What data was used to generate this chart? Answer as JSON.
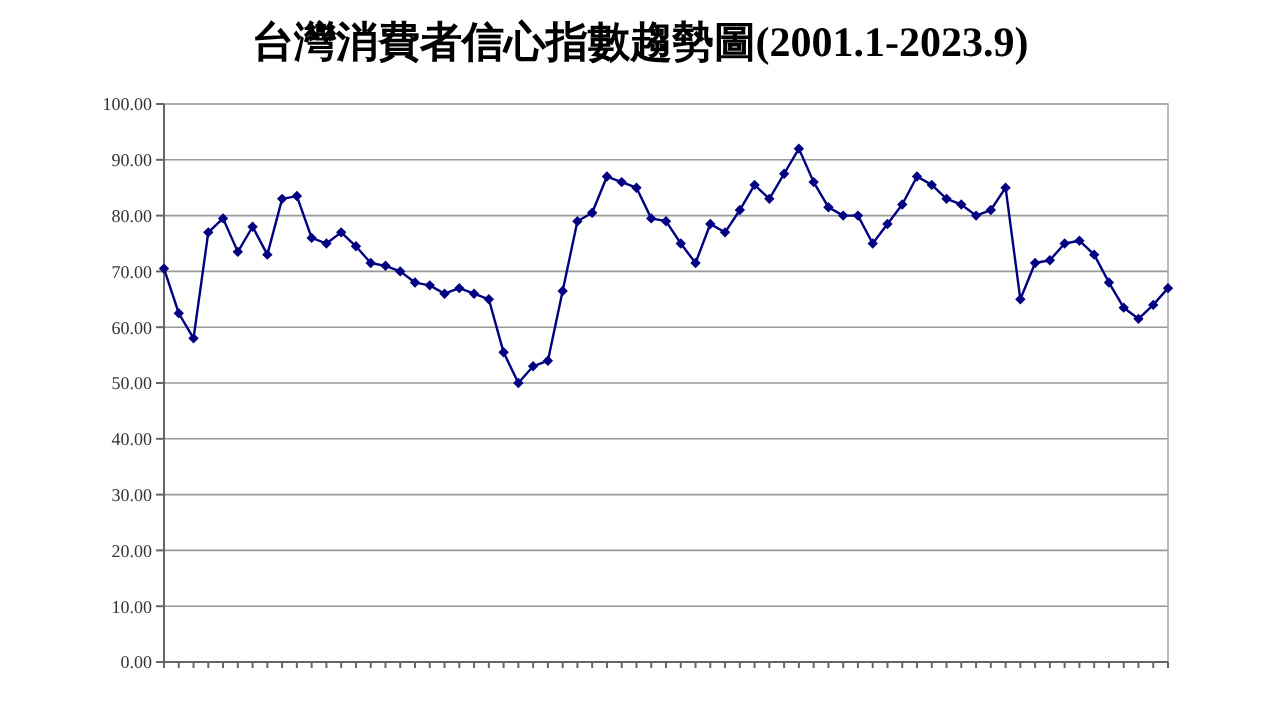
{
  "chart_data": {
    "type": "line",
    "title": "台灣消費者信心指數趨勢圖(2001.1-2023.9)",
    "categories": [
      null,
      null,
      null,
      null,
      null,
      null,
      null,
      null,
      null,
      null,
      null,
      null,
      null,
      null,
      null,
      null,
      null,
      null,
      null,
      null,
      null,
      null,
      null,
      null,
      null,
      null,
      null,
      null,
      null,
      null,
      null,
      null,
      null,
      null,
      null,
      null,
      null,
      null,
      null,
      null,
      null,
      null,
      null,
      null,
      null,
      null,
      null,
      null,
      null,
      null,
      null,
      null,
      null,
      null,
      null,
      null,
      null,
      null,
      null,
      null,
      null,
      null,
      null,
      null,
      null,
      null,
      null,
      null,
      null
    ],
    "series": [
      {
        "color": "#000080",
        "values": [
          70.5,
          62.5,
          58,
          77,
          79.5,
          73.5,
          78,
          73,
          83,
          83.5,
          76,
          75,
          77,
          74.5,
          71.5,
          71,
          70,
          68,
          67.5,
          66,
          67,
          66,
          65,
          55.5,
          50,
          53,
          54,
          66.5,
          79,
          80.5,
          87,
          86,
          85,
          79.5,
          79,
          75,
          71.5,
          78.5,
          77,
          81,
          85.5,
          83,
          87.5,
          92,
          86,
          81.5,
          80,
          80,
          75,
          78.5,
          82,
          87,
          85.5,
          83,
          82,
          80,
          81,
          85,
          65,
          71.5,
          72,
          75,
          75.5,
          73,
          68,
          63.5,
          61.5,
          64,
          67
        ]
      }
    ],
    "ylim": [
      0,
      100
    ],
    "yticks": [
      {
        "value": 0,
        "label": "0.00"
      },
      {
        "value": 10,
        "label": "10.00"
      },
      {
        "value": 20,
        "label": "20.00"
      },
      {
        "value": 30,
        "label": "30.00"
      },
      {
        "value": 40,
        "label": "40.00"
      },
      {
        "value": 50,
        "label": "50.00"
      },
      {
        "value": 60,
        "label": "60.00"
      },
      {
        "value": 70,
        "label": "70.00"
      },
      {
        "value": 80,
        "label": "80.00"
      },
      {
        "value": 90,
        "label": "90.00"
      },
      {
        "value": 100,
        "label": "100.00"
      }
    ],
    "grid": "y",
    "tick_labels": "y",
    "marker": "diamond",
    "line_style": "solid"
  }
}
